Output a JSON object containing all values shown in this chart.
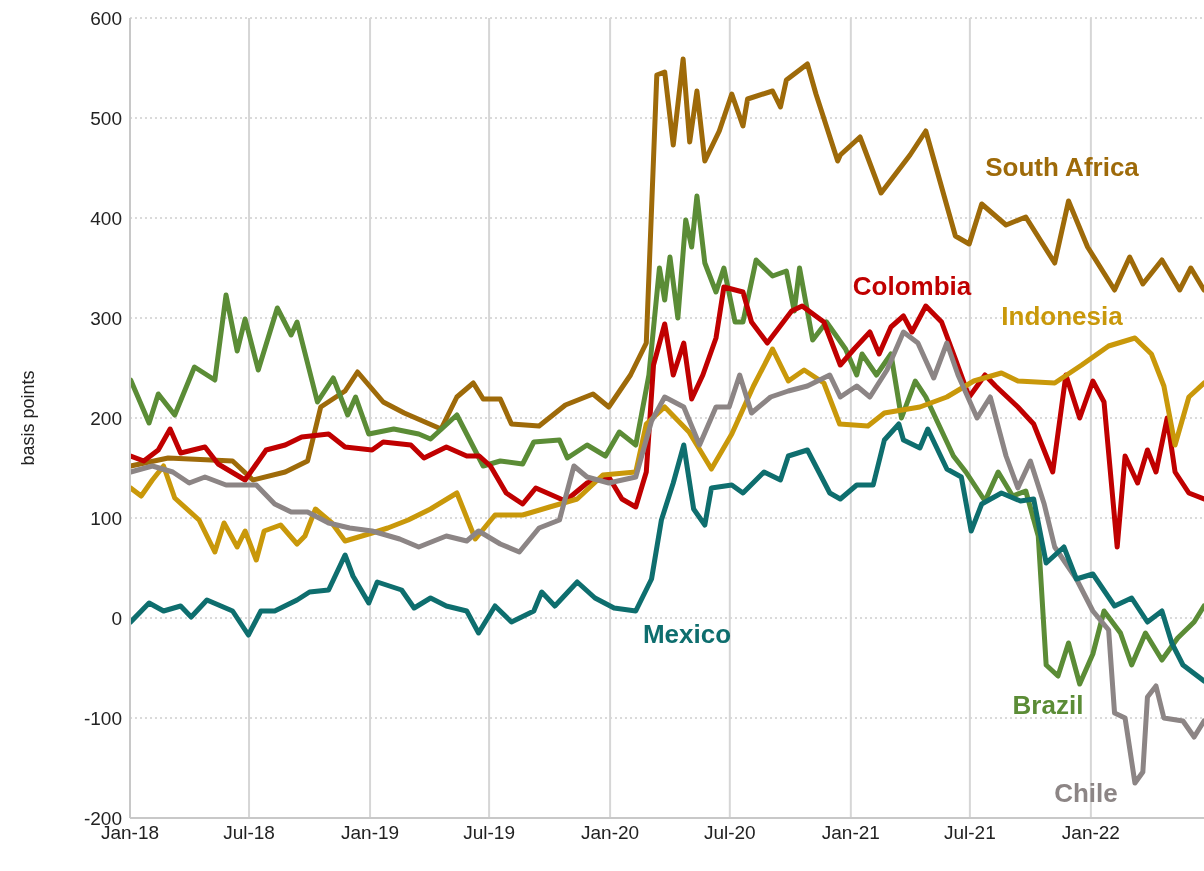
{
  "chart_data": {
    "type": "line",
    "ylabel": "basis points",
    "xlim": [
      "2018-01-01",
      "2022-06-22"
    ],
    "xticks": [
      {
        "value": "2018-01-01",
        "label": "Jan-18"
      },
      {
        "value": "2018-07-01",
        "label": "Jul-18"
      },
      {
        "value": "2019-01-01",
        "label": "Jan-19"
      },
      {
        "value": "2019-07-01",
        "label": "Jul-19"
      },
      {
        "value": "2020-01-01",
        "label": "Jan-20"
      },
      {
        "value": "2020-07-01",
        "label": "Jul-20"
      },
      {
        "value": "2021-01-01",
        "label": "Jan-21"
      },
      {
        "value": "2021-07-01",
        "label": "Jul-21"
      },
      {
        "value": "2022-01-01",
        "label": "Jan-22"
      }
    ],
    "ylim": [
      -200,
      600
    ],
    "yticks": [
      -200,
      -100,
      0,
      100,
      200,
      300,
      400,
      500,
      600
    ],
    "grid": true,
    "legend": false,
    "line_style": "solid",
    "series": [
      {
        "name": "South Africa",
        "color": "#9e6a09",
        "x": [
          "2018-01-02",
          "2018-02-28",
          "2018-06-06",
          "2018-07-07",
          "2018-08-25",
          "2018-09-28",
          "2018-10-18",
          "2018-11-24",
          "2018-12-13",
          "2019-01-21",
          "2019-02-22",
          "2019-04-19",
          "2019-05-13",
          "2019-06-07",
          "2019-06-22",
          "2019-07-18",
          "2019-08-04",
          "2019-09-15",
          "2019-10-25",
          "2019-12-06",
          "2019-12-30",
          "2020-02-01",
          "2020-02-25",
          "2020-03-12",
          "2020-03-24",
          "2020-04-06",
          "2020-04-21",
          "2020-05-01",
          "2020-05-12",
          "2020-05-24",
          "2020-06-15",
          "2020-07-04",
          "2020-07-21",
          "2020-07-28",
          "2020-09-04",
          "2020-09-16",
          "2020-09-25",
          "2020-10-27",
          "2020-11-09",
          "2020-12-12",
          "2020-12-16",
          "2021-01-15",
          "2021-02-16",
          "2021-04-01",
          "2021-04-25",
          "2021-06-09",
          "2021-06-30",
          "2021-07-19",
          "2021-08-25",
          "2021-09-24",
          "2021-11-07",
          "2021-11-28",
          "2021-12-27",
          "2022-02-06",
          "2022-03-01",
          "2022-03-21",
          "2022-04-19",
          "2022-05-16",
          "2022-06-02",
          "2022-06-22"
        ],
        "values": [
          152,
          160,
          157,
          138,
          146,
          157,
          211,
          227,
          246,
          216,
          205,
          189,
          221,
          235,
          219,
          219,
          194,
          192,
          213,
          224,
          211,
          243,
          275,
          543,
          546,
          473,
          559,
          476,
          527,
          457,
          487,
          524,
          492,
          519,
          527,
          511,
          538,
          554,
          524,
          457,
          463,
          481,
          425,
          463,
          487,
          382,
          374,
          414,
          393,
          401,
          355,
          417,
          371,
          328,
          361,
          334,
          358,
          328,
          350,
          328
        ]
      },
      {
        "name": "Brazil",
        "color": "#5b8c36",
        "x": [
          "2018-01-02",
          "2018-01-30",
          "2018-02-13",
          "2018-03-10",
          "2018-04-09",
          "2018-05-10",
          "2018-05-27",
          "2018-06-13",
          "2018-06-25",
          "2018-07-15",
          "2018-08-13",
          "2018-09-03",
          "2018-09-12",
          "2018-10-13",
          "2018-11-06",
          "2018-11-28",
          "2018-12-10",
          "2018-12-30",
          "2019-02-06",
          "2019-03-16",
          "2019-04-03",
          "2019-05-13",
          "2019-06-22",
          "2019-07-18",
          "2019-08-21",
          "2019-09-07",
          "2019-10-16",
          "2019-10-28",
          "2019-11-27",
          "2019-12-25",
          "2020-01-15",
          "2020-02-09",
          "2020-02-29",
          "2020-03-16",
          "2020-03-24",
          "2020-04-01",
          "2020-04-13",
          "2020-04-25",
          "2020-05-04",
          "2020-05-12",
          "2020-05-24",
          "2020-06-10",
          "2020-06-22",
          "2020-07-09",
          "2020-07-21",
          "2020-08-10",
          "2020-09-04",
          "2020-09-25",
          "2020-10-07",
          "2020-10-15",
          "2020-11-04",
          "2020-11-25",
          "2020-12-24",
          "2021-01-10",
          "2021-01-18",
          "2021-02-09",
          "2021-03-03",
          "2021-03-19",
          "2021-04-09",
          "2021-04-25",
          "2021-06-06",
          "2021-06-25",
          "2021-07-24",
          "2021-08-13",
          "2021-09-04",
          "2021-09-24",
          "2021-10-13",
          "2021-10-25",
          "2021-11-12",
          "2021-11-28",
          "2021-12-15",
          "2022-01-04",
          "2022-01-21",
          "2022-02-15",
          "2022-03-04",
          "2022-03-25",
          "2022-04-19",
          "2022-05-13",
          "2022-06-07",
          "2022-06-22"
        ],
        "values": [
          238,
          195,
          224,
          203,
          251,
          238,
          323,
          267,
          299,
          248,
          310,
          283,
          296,
          216,
          240,
          203,
          221,
          184,
          189,
          184,
          179,
          203,
          152,
          157,
          154,
          176,
          178,
          160,
          173,
          162,
          186,
          173,
          243,
          350,
          318,
          361,
          300,
          398,
          371,
          422,
          355,
          326,
          350,
          296,
          296,
          358,
          342,
          347,
          307,
          350,
          278,
          296,
          269,
          243,
          264,
          243,
          264,
          200,
          237,
          221,
          162,
          146,
          117,
          146,
          122,
          127,
          82,
          -47,
          -58,
          -25,
          -66,
          -36,
          7,
          -15,
          -47,
          -15,
          -42,
          -20,
          -4,
          12
        ]
      },
      {
        "name": "Colombia",
        "color": "#c00000",
        "x": [
          "2018-01-02",
          "2018-01-22",
          "2018-02-13",
          "2018-03-03",
          "2018-03-19",
          "2018-04-25",
          "2018-05-15",
          "2018-06-25",
          "2018-07-27",
          "2018-08-25",
          "2018-09-19",
          "2018-10-30",
          "2018-11-24",
          "2019-01-04",
          "2019-01-21",
          "2019-03-04",
          "2019-03-24",
          "2019-04-27",
          "2019-05-28",
          "2019-06-16",
          "2019-07-03",
          "2019-07-27",
          "2019-08-21",
          "2019-09-10",
          "2019-10-25",
          "2019-11-27",
          "2019-12-30",
          "2020-01-19",
          "2020-02-09",
          "2020-02-25",
          "2020-03-07",
          "2020-03-24",
          "2020-04-06",
          "2020-04-22",
          "2020-05-04",
          "2020-05-21",
          "2020-06-10",
          "2020-06-22",
          "2020-07-21",
          "2020-08-03",
          "2020-08-27",
          "2020-10-03",
          "2020-10-19",
          "2020-11-21",
          "2020-12-16",
          "2021-01-06",
          "2021-01-30",
          "2021-02-13",
          "2021-03-03",
          "2021-03-22",
          "2021-04-04",
          "2021-04-25",
          "2021-05-19",
          "2021-06-09",
          "2021-06-30",
          "2021-07-24",
          "2021-08-09",
          "2021-09-12",
          "2021-10-06",
          "2021-11-04",
          "2021-11-24",
          "2021-12-15",
          "2022-01-04",
          "2022-01-21",
          "2022-02-10",
          "2022-02-22",
          "2022-03-13",
          "2022-03-28",
          "2022-04-10",
          "2022-04-27",
          "2022-05-09",
          "2022-05-30",
          "2022-06-22"
        ],
        "values": [
          162,
          157,
          168,
          189,
          165,
          171,
          154,
          138,
          168,
          173,
          181,
          184,
          171,
          168,
          176,
          173,
          160,
          171,
          162,
          162,
          152,
          125,
          114,
          130,
          117,
          135,
          141,
          119,
          111,
          146,
          253,
          294,
          243,
          275,
          219,
          243,
          280,
          331,
          326,
          296,
          275,
          307,
          312,
          296,
          253,
          269,
          286,
          264,
          291,
          302,
          286,
          312,
          296,
          259,
          221,
          243,
          232,
          211,
          194,
          146,
          243,
          200,
          237,
          216,
          71,
          162,
          135,
          168,
          146,
          200,
          146,
          125,
          119
        ]
      },
      {
        "name": "Indonesia",
        "color": "#c9980a",
        "x": [
          "2018-01-02",
          "2018-01-18",
          "2018-02-04",
          "2018-02-21",
          "2018-03-10",
          "2018-04-16",
          "2018-05-10",
          "2018-05-24",
          "2018-06-13",
          "2018-06-25",
          "2018-07-12",
          "2018-07-24",
          "2018-08-18",
          "2018-09-12",
          "2018-09-24",
          "2018-10-10",
          "2018-11-04",
          "2018-11-24",
          "2019-01-04",
          "2019-01-28",
          "2019-02-28",
          "2019-04-03",
          "2019-05-13",
          "2019-06-10",
          "2019-07-10",
          "2019-08-21",
          "2019-10-01",
          "2019-11-12",
          "2019-12-21",
          "2020-02-09",
          "2020-02-25",
          "2020-03-24",
          "2020-04-30",
          "2020-06-03",
          "2020-07-04",
          "2020-08-06",
          "2020-09-04",
          "2020-09-28",
          "2020-10-22",
          "2020-11-21",
          "2020-12-15",
          "2021-01-27",
          "2021-02-21",
          "2021-04-16",
          "2021-05-27",
          "2021-07-07",
          "2021-08-18",
          "2021-09-12",
          "2021-11-07",
          "2021-12-18",
          "2022-01-28",
          "2022-03-09",
          "2022-04-03",
          "2022-04-22",
          "2022-05-09",
          "2022-05-30",
          "2022-06-22"
        ],
        "values": [
          130,
          122,
          138,
          152,
          120,
          98,
          66,
          95,
          71,
          87,
          58,
          87,
          93,
          74,
          82,
          109,
          95,
          77,
          85,
          90,
          98,
          109,
          125,
          79,
          103,
          103,
          111,
          119,
          143,
          146,
          194,
          211,
          186,
          149,
          184,
          232,
          269,
          237,
          248,
          235,
          194,
          192,
          205,
          211,
          221,
          237,
          245,
          237,
          235,
          253,
          272,
          280,
          264,
          232,
          173,
          221,
          235
        ]
      },
      {
        "name": "Chile",
        "color": "#8c8585",
        "x": [
          "2018-01-02",
          "2018-02-04",
          "2018-03-07",
          "2018-04-01",
          "2018-04-25",
          "2018-05-27",
          "2018-07-12",
          "2018-08-09",
          "2018-09-03",
          "2018-09-28",
          "2018-10-30",
          "2018-12-01",
          "2019-01-04",
          "2019-02-15",
          "2019-03-16",
          "2019-04-27",
          "2019-05-28",
          "2019-06-15",
          "2019-07-18",
          "2019-08-16",
          "2019-09-15",
          "2019-10-16",
          "2019-11-07",
          "2019-11-27",
          "2019-12-30",
          "2020-02-09",
          "2020-03-04",
          "2020-03-24",
          "2020-04-22",
          "2020-05-16",
          "2020-06-10",
          "2020-06-30",
          "2020-07-16",
          "2020-08-03",
          "2020-09-01",
          "2020-09-28",
          "2020-10-27",
          "2020-11-30",
          "2020-12-16",
          "2021-01-10",
          "2021-01-30",
          "2021-02-25",
          "2021-03-22",
          "2021-04-13",
          "2021-05-07",
          "2021-05-27",
          "2021-06-13",
          "2021-07-12",
          "2021-08-01",
          "2021-08-25",
          "2021-09-12",
          "2021-10-01",
          "2021-10-22",
          "2021-11-07",
          "2021-12-10",
          "2022-01-04",
          "2022-01-28",
          "2022-02-06",
          "2022-02-22",
          "2022-03-09",
          "2022-03-21",
          "2022-03-28",
          "2022-04-10",
          "2022-04-22",
          "2022-05-21",
          "2022-06-07",
          "2022-06-22"
        ],
        "values": [
          146,
          152,
          146,
          135,
          141,
          133,
          133,
          114,
          106,
          106,
          95,
          90,
          87,
          79,
          71,
          82,
          77,
          87,
          74,
          66,
          90,
          98,
          152,
          141,
          135,
          141,
          197,
          221,
          211,
          173,
          211,
          211,
          243,
          205,
          221,
          227,
          232,
          243,
          221,
          232,
          221,
          248,
          286,
          275,
          240,
          275,
          243,
          200,
          221,
          162,
          130,
          157,
          114,
          71,
          39,
          7,
          -12,
          -95,
          -100,
          -165,
          -154,
          -79,
          -68,
          -100,
          -103,
          -119,
          -103
        ]
      },
      {
        "name": "Mexico",
        "color": "#0e6e6e",
        "x": [
          "2018-01-02",
          "2018-01-30",
          "2018-02-21",
          "2018-03-19",
          "2018-04-04",
          "2018-04-28",
          "2018-06-06",
          "2018-06-30",
          "2018-07-19",
          "2018-08-09",
          "2018-09-12",
          "2018-10-01",
          "2018-10-30",
          "2018-11-24",
          "2018-12-06",
          "2018-12-30",
          "2019-01-12",
          "2019-02-18",
          "2019-03-09",
          "2019-04-03",
          "2019-04-27",
          "2019-05-28",
          "2019-06-15",
          "2019-07-10",
          "2019-08-04",
          "2019-09-07",
          "2019-09-19",
          "2019-10-09",
          "2019-11-12",
          "2019-12-09",
          "2020-01-07",
          "2020-02-09",
          "2020-03-04",
          "2020-03-19",
          "2020-04-06",
          "2020-04-22",
          "2020-05-07",
          "2020-05-24",
          "2020-06-03",
          "2020-07-04",
          "2020-07-21",
          "2020-08-22",
          "2020-09-16",
          "2020-09-28",
          "2020-10-27",
          "2020-11-30",
          "2020-12-16",
          "2021-01-10",
          "2021-02-04",
          "2021-02-21",
          "2021-03-15",
          "2021-03-22",
          "2021-04-16",
          "2021-04-28",
          "2021-05-27",
          "2021-06-18",
          "2021-07-03",
          "2021-07-19",
          "2021-08-18",
          "2021-09-16",
          "2021-10-06",
          "2021-10-25",
          "2021-11-21",
          "2021-12-10",
          "2022-01-04",
          "2022-02-06",
          "2022-03-04",
          "2022-03-28",
          "2022-04-19",
          "2022-05-04",
          "2022-05-21",
          "2022-06-22"
        ],
        "values": [
          -4,
          15,
          7,
          12,
          1,
          18,
          7,
          -17,
          7,
          7,
          18,
          26,
          28,
          63,
          42,
          15,
          36,
          28,
          10,
          20,
          12,
          7,
          -15,
          12,
          -4,
          7,
          26,
          12,
          36,
          20,
          10,
          7,
          39,
          98,
          135,
          173,
          109,
          93,
          130,
          133,
          125,
          146,
          138,
          162,
          168,
          125,
          119,
          133,
          133,
          178,
          194,
          178,
          170,
          189,
          149,
          141,
          87,
          114,
          125,
          117,
          119,
          55,
          71,
          39,
          44,
          12,
          20,
          -4,
          7,
          -25,
          -47,
          -63
        ]
      }
    ]
  }
}
